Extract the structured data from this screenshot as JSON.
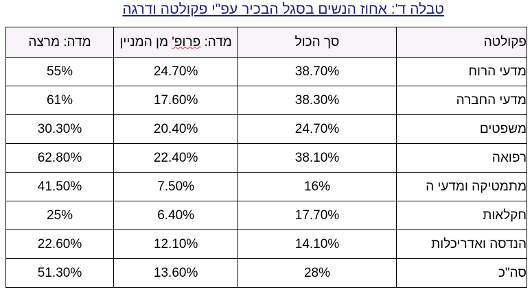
{
  "title": "טבלה ד': אחוז הנשים בסגל הבכיר עפ\"י פקולטה ודרגה",
  "columns": {
    "faculty": "פקולטה",
    "total": "סך הכול",
    "professor_prefix": "מדה: ",
    "professor_word": "פרופ'",
    "professor_suffix": " מן המניין",
    "lecturer": "מדה: מרצה"
  },
  "rows": [
    {
      "faculty": "מדעי הרוח",
      "total": "38.70%",
      "professor": "24.70%",
      "lecturer": "55%"
    },
    {
      "faculty": "מדעי החברה",
      "total": "38.30%",
      "professor": "17.60%",
      "lecturer": "61%"
    },
    {
      "faculty": "משפטים",
      "total": "24.70%",
      "professor": "20.40%",
      "lecturer": "30.30%"
    },
    {
      "faculty": "רפואה",
      "total": "38.10%",
      "professor": "22.40%",
      "lecturer": "62.80%"
    },
    {
      "faculty": "מתמטיקה ומדעי ה",
      "total": "16%",
      "professor": "7.50%",
      "lecturer": "41.50%"
    },
    {
      "faculty": "חקלאות",
      "total": "17.70%",
      "professor": "6.40%",
      "lecturer": "25%"
    },
    {
      "faculty": "הנדסה ואדריכלות",
      "total": "14.10%",
      "professor": "12.10%",
      "lecturer": "22.60%"
    },
    {
      "faculty": "סה\"כ",
      "total": "28%",
      "professor": "13.60%",
      "lecturer": "51.30%"
    }
  ]
}
